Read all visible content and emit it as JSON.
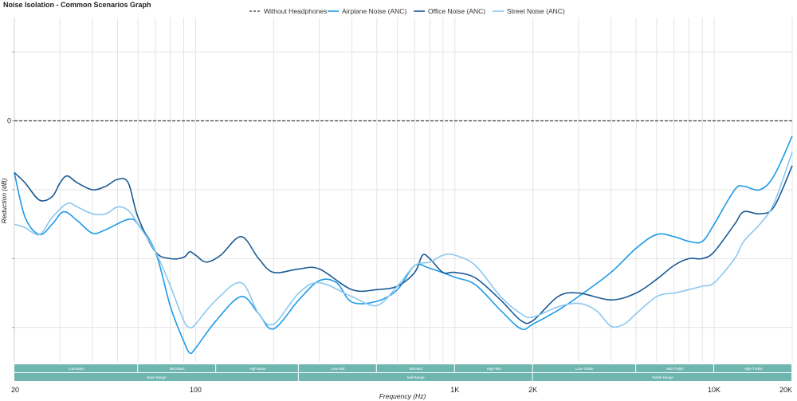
{
  "chart_data": {
    "type": "line",
    "title": "Noise Isolation - Common Scenarios Graph",
    "xlabel": "Frequency (Hz)",
    "ylabel": "Reduction (dB)",
    "x_scale": "log",
    "xlim": [
      20,
      20000
    ],
    "ylim": [
      -35,
      15
    ],
    "y_ticks": [
      10,
      0,
      -10,
      -20,
      -30
    ],
    "y_tick_labels": [
      "",
      "0",
      "",
      "",
      ""
    ],
    "x_ticks": [
      20,
      100,
      1000,
      2000,
      10000,
      20000
    ],
    "x_tick_labels": [
      "20",
      "100",
      "1K",
      "2K",
      "10K",
      "20K"
    ],
    "grid": true,
    "legend_position": "top",
    "series": [
      {
        "name": "Without Headphones",
        "color": "#555555",
        "style": "dashed",
        "points": [
          [
            20,
            0
          ],
          [
            20000,
            0
          ]
        ]
      },
      {
        "name": "Airplane Noise (ANC)",
        "color": "#1e9be8",
        "style": "solid",
        "points": [
          [
            20,
            -7.5
          ],
          [
            22,
            -14
          ],
          [
            25,
            -16.5
          ],
          [
            28,
            -15
          ],
          [
            31,
            -13.2
          ],
          [
            35,
            -14.5
          ],
          [
            40,
            -16.3
          ],
          [
            45,
            -15.8
          ],
          [
            55,
            -14.3
          ],
          [
            60,
            -15
          ],
          [
            70,
            -19
          ],
          [
            80,
            -27
          ],
          [
            90,
            -32
          ],
          [
            95,
            -33.7
          ],
          [
            100,
            -33
          ],
          [
            120,
            -29
          ],
          [
            150,
            -25.5
          ],
          [
            175,
            -28
          ],
          [
            200,
            -30.2
          ],
          [
            250,
            -26
          ],
          [
            300,
            -23.2
          ],
          [
            350,
            -23.5
          ],
          [
            400,
            -26.3
          ],
          [
            500,
            -26.2
          ],
          [
            600,
            -24.5
          ],
          [
            700,
            -21
          ],
          [
            800,
            -21.4
          ],
          [
            1000,
            -22.7
          ],
          [
            1200,
            -23.8
          ],
          [
            1500,
            -27.5
          ],
          [
            1800,
            -30.2
          ],
          [
            2000,
            -29.5
          ],
          [
            2500,
            -27.5
          ],
          [
            3000,
            -25.5
          ],
          [
            4000,
            -22
          ],
          [
            5000,
            -18.5
          ],
          [
            6000,
            -16.5
          ],
          [
            7000,
            -16.8
          ],
          [
            8000,
            -17.5
          ],
          [
            9000,
            -17.5
          ],
          [
            10000,
            -15
          ],
          [
            12000,
            -10
          ],
          [
            13000,
            -9.5
          ],
          [
            15000,
            -10
          ],
          [
            17000,
            -8
          ],
          [
            20000,
            -2.2
          ]
        ]
      },
      {
        "name": "Office Noise (ANC)",
        "color": "#1a5a94",
        "style": "solid",
        "points": [
          [
            20,
            -7.5
          ],
          [
            22,
            -9
          ],
          [
            25,
            -11.5
          ],
          [
            28,
            -11
          ],
          [
            30,
            -9
          ],
          [
            32,
            -8
          ],
          [
            35,
            -9
          ],
          [
            40,
            -10
          ],
          [
            45,
            -9.5
          ],
          [
            50,
            -8.5
          ],
          [
            55,
            -9
          ],
          [
            60,
            -14
          ],
          [
            70,
            -19
          ],
          [
            80,
            -20
          ],
          [
            90,
            -19.8
          ],
          [
            95,
            -19
          ],
          [
            100,
            -19.5
          ],
          [
            110,
            -20.5
          ],
          [
            125,
            -19.5
          ],
          [
            150,
            -16.8
          ],
          [
            175,
            -20
          ],
          [
            200,
            -22
          ],
          [
            250,
            -21.5
          ],
          [
            300,
            -21.5
          ],
          [
            400,
            -24.5
          ],
          [
            500,
            -24.5
          ],
          [
            600,
            -24
          ],
          [
            700,
            -22
          ],
          [
            750,
            -19.5
          ],
          [
            800,
            -20
          ],
          [
            900,
            -22
          ],
          [
            1000,
            -22
          ],
          [
            1200,
            -22.8
          ],
          [
            1500,
            -26
          ],
          [
            1800,
            -29
          ],
          [
            2000,
            -29
          ],
          [
            2500,
            -25.5
          ],
          [
            3000,
            -25
          ],
          [
            4000,
            -26
          ],
          [
            5000,
            -25
          ],
          [
            6000,
            -23
          ],
          [
            7000,
            -21
          ],
          [
            8000,
            -20
          ],
          [
            9000,
            -20
          ],
          [
            10000,
            -19
          ],
          [
            12000,
            -15
          ],
          [
            13000,
            -13.2
          ],
          [
            15000,
            -13.5
          ],
          [
            17000,
            -12.5
          ],
          [
            20000,
            -6.5
          ]
        ]
      },
      {
        "name": "Street Noise (ANC)",
        "color": "#8cc8f0",
        "style": "solid",
        "points": [
          [
            20,
            -15
          ],
          [
            22,
            -15.5
          ],
          [
            25,
            -16.5
          ],
          [
            28,
            -14
          ],
          [
            32,
            -12
          ],
          [
            35,
            -12.5
          ],
          [
            40,
            -13.5
          ],
          [
            45,
            -13.5
          ],
          [
            50,
            -12.5
          ],
          [
            55,
            -13
          ],
          [
            60,
            -15
          ],
          [
            70,
            -19
          ],
          [
            80,
            -24
          ],
          [
            90,
            -29
          ],
          [
            95,
            -30
          ],
          [
            100,
            -29.5
          ],
          [
            120,
            -26
          ],
          [
            150,
            -23.5
          ],
          [
            175,
            -28
          ],
          [
            200,
            -29.5
          ],
          [
            250,
            -25
          ],
          [
            300,
            -23.5
          ],
          [
            400,
            -25.5
          ],
          [
            500,
            -26.8
          ],
          [
            600,
            -24
          ],
          [
            700,
            -21
          ],
          [
            800,
            -20.5
          ],
          [
            900,
            -19.5
          ],
          [
            1000,
            -19.5
          ],
          [
            1200,
            -21
          ],
          [
            1500,
            -25.5
          ],
          [
            1800,
            -28
          ],
          [
            2000,
            -28.5
          ],
          [
            2500,
            -27
          ],
          [
            3000,
            -26.5
          ],
          [
            3500,
            -27.5
          ],
          [
            4000,
            -29.8
          ],
          [
            4500,
            -29.5
          ],
          [
            5000,
            -28
          ],
          [
            6000,
            -25.5
          ],
          [
            7000,
            -25
          ],
          [
            8000,
            -24.5
          ],
          [
            9000,
            -24
          ],
          [
            10000,
            -23.5
          ],
          [
            12000,
            -20
          ],
          [
            13000,
            -17.5
          ],
          [
            15000,
            -15
          ],
          [
            17000,
            -12
          ],
          [
            20000,
            -4.5
          ]
        ]
      }
    ],
    "band_rows": [
      [
        {
          "label": "Low-Bass",
          "from": 20,
          "to": 60
        },
        {
          "label": "Mid-Bass",
          "from": 60,
          "to": 120
        },
        {
          "label": "High-Bass",
          "from": 120,
          "to": 250
        },
        {
          "label": "Low-Mid",
          "from": 250,
          "to": 500
        },
        {
          "label": "Mid-Mid",
          "from": 500,
          "to": 1000
        },
        {
          "label": "High-Mid",
          "from": 1000,
          "to": 2000
        },
        {
          "label": "Low-Treble",
          "from": 2000,
          "to": 5000
        },
        {
          "label": "Mid-Treble",
          "from": 5000,
          "to": 10000
        },
        {
          "label": "High-Treble",
          "from": 10000,
          "to": 20000
        }
      ],
      [
        {
          "label": "Bass Range",
          "from": 20,
          "to": 250
        },
        {
          "label": "Mid Range",
          "from": 250,
          "to": 2000
        },
        {
          "label": "Treble Range",
          "from": 2000,
          "to": 20000
        }
      ]
    ],
    "band_color": "#6fb5b0"
  }
}
